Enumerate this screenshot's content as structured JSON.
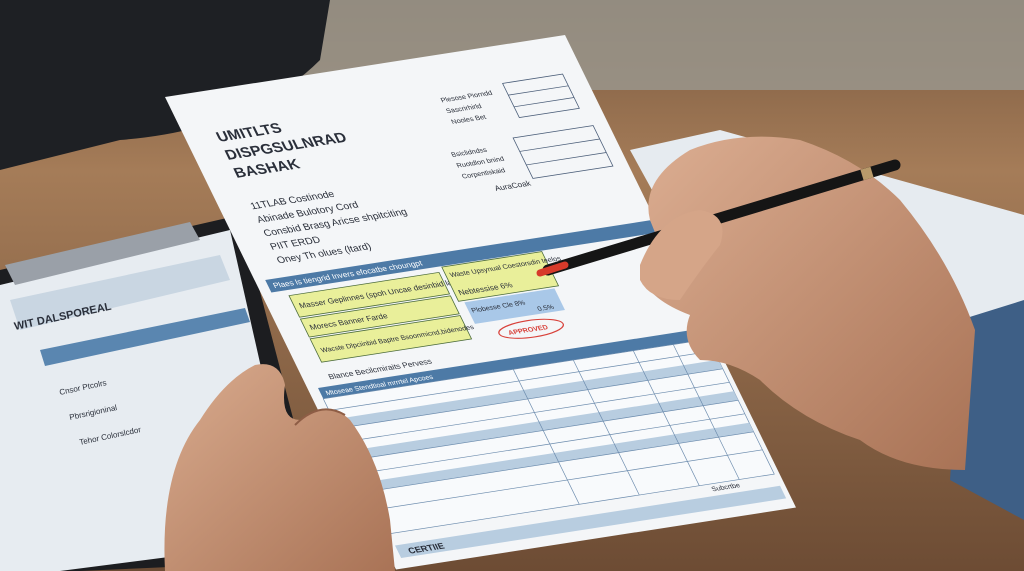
{
  "document": {
    "title_lines": [
      "UMITLTS",
      "DISPGSULNRAD",
      "BASHAK"
    ],
    "info_lines": [
      "11TLAB Costinode",
      "Abinade Bulotory Cord",
      "Consbid Brasg  Aricse shpitciting",
      "PIIT ERDD",
      "Oney Th olues (ltard)"
    ],
    "top_right_labels": [
      "Plesose Piorndd",
      "Sascrirhirld",
      "Nooles Bet",
      "Bsiclidndss",
      "Ruotdlon bnind",
      "Corpentiskaid",
      "AuraCoak"
    ],
    "table_header": "Plaes ls tiengrid Invers efocatbe choungpt",
    "highlight_rows": [
      "Masser Geplinnes (spoh Uncae desinbid ladiga)",
      "Morecs Banner Farde",
      "Wacste Dlpciinbid Baptre Bsoonmicnd,bidenodes"
    ],
    "right_rows": [
      "Waste Upsynual Coestorsdin teelos",
      "Nebtessise  6%",
      "Plobesse Cle  8%",
      "0.5%"
    ],
    "stamp": "APPROVED",
    "section_label": "Blance Becilcmiraits Pervess",
    "grid_header": "Mtoseae Stendtioal mrrrtel Apcoes",
    "footer_label": "CERTIIE",
    "side_note": "Subcrtbe"
  },
  "clipboard": {
    "sheet_title": "WIT DALSPOREAL",
    "sheet_lines": [
      "Cnsor Ptcolrs",
      "Pbrsrigioninal",
      "Tehor Colorslcdor"
    ]
  },
  "colors": {
    "desk": "#8a6a4e",
    "paper": "#f4f6f8",
    "table_blue": "#4d7aa6",
    "highlight_yellow": "#e9ef9a",
    "skin": "#c89a7f",
    "sleeve": "#3e5f86",
    "pen": "#151515",
    "pen_tip": "#d73a2a"
  }
}
